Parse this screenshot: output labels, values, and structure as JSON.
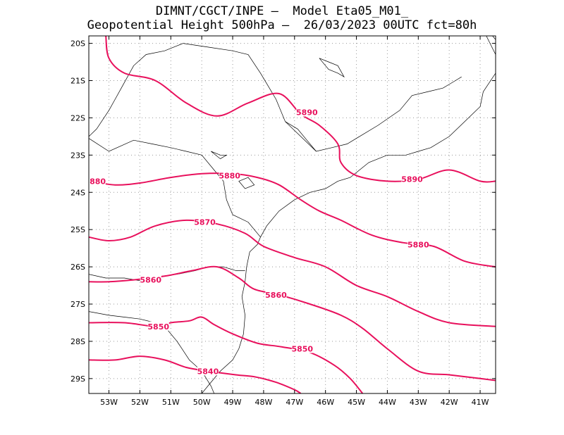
{
  "header": {
    "line1": "DIMNT/CGCT/INPE –  Model Eta05_M01_",
    "line2": "Geopotential Height 500hPa –  26/03/2023 00UTC fct=80h"
  },
  "map": {
    "lon_range": [
      -53.65,
      -40.5
    ],
    "lat_range": [
      -29.4,
      -19.8
    ],
    "gridlines": true,
    "colors": {
      "contour": "#e8105c",
      "coast": "#000000",
      "grid": "#999999"
    },
    "lon_ticks": [
      {
        "value": -53,
        "label": "53W"
      },
      {
        "value": -52,
        "label": "52W"
      },
      {
        "value": -51,
        "label": "51W"
      },
      {
        "value": -50,
        "label": "50W"
      },
      {
        "value": -49,
        "label": "49W"
      },
      {
        "value": -48,
        "label": "48W"
      },
      {
        "value": -47,
        "label": "47W"
      },
      {
        "value": -46,
        "label": "46W"
      },
      {
        "value": -45,
        "label": "45W"
      },
      {
        "value": -44,
        "label": "44W"
      },
      {
        "value": -43,
        "label": "43W"
      },
      {
        "value": -42,
        "label": "42W"
      },
      {
        "value": -41,
        "label": "41W"
      }
    ],
    "lat_ticks": [
      {
        "value": -20,
        "label": "20S"
      },
      {
        "value": -21,
        "label": "21S"
      },
      {
        "value": -22,
        "label": "22S"
      },
      {
        "value": -23,
        "label": "23S"
      },
      {
        "value": -24,
        "label": "24S"
      },
      {
        "value": -25,
        "label": "25S"
      },
      {
        "value": -26,
        "label": "26S"
      },
      {
        "value": -27,
        "label": "27S"
      },
      {
        "value": -28,
        "label": "28S"
      },
      {
        "value": -29,
        "label": "29S"
      }
    ],
    "contours": [
      {
        "level": "5890",
        "points": [
          [
            -53.1,
            -19.8
          ],
          [
            -53.0,
            -20.4
          ],
          [
            -52.5,
            -20.8
          ],
          [
            -51.5,
            -21.0
          ],
          [
            -50.5,
            -21.6
          ],
          [
            -49.5,
            -21.95
          ],
          [
            -48.5,
            -21.6
          ],
          [
            -47.5,
            -21.35
          ],
          [
            -46.8,
            -21.9
          ],
          [
            -46.2,
            -22.2
          ],
          [
            -45.6,
            -22.7
          ],
          [
            -45.5,
            -23.2
          ],
          [
            -45.0,
            -23.55
          ],
          [
            -44.0,
            -23.7
          ],
          [
            -43.0,
            -23.65
          ],
          [
            -42.0,
            -23.4
          ],
          [
            -41.0,
            -23.7
          ],
          [
            -40.5,
            -23.7
          ]
        ],
        "labels": [
          [
            -46.6,
            -21.85
          ],
          [
            -43.2,
            -23.65
          ]
        ]
      },
      {
        "level": "5880",
        "points": [
          [
            -53.65,
            -23.7
          ],
          [
            -52.8,
            -23.8
          ],
          [
            -52.0,
            -23.75
          ],
          [
            -51.0,
            -23.6
          ],
          [
            -50.0,
            -23.5
          ],
          [
            -49.0,
            -23.5
          ],
          [
            -48.2,
            -23.6
          ],
          [
            -47.5,
            -23.8
          ],
          [
            -46.8,
            -24.2
          ],
          [
            -46.2,
            -24.5
          ],
          [
            -45.5,
            -24.75
          ],
          [
            -44.5,
            -25.15
          ],
          [
            -43.5,
            -25.35
          ],
          [
            -42.5,
            -25.45
          ],
          [
            -41.5,
            -25.85
          ],
          [
            -40.5,
            -26.0
          ]
        ],
        "labels": [
          [
            -53.45,
            -23.7
          ],
          [
            -49.1,
            -23.55
          ],
          [
            -43.0,
            -25.4
          ]
        ]
      },
      {
        "level": "5870",
        "points": [
          [
            -53.65,
            -25.2
          ],
          [
            -53.0,
            -25.3
          ],
          [
            -52.3,
            -25.2
          ],
          [
            -51.5,
            -24.9
          ],
          [
            -50.5,
            -24.75
          ],
          [
            -49.5,
            -24.85
          ],
          [
            -48.6,
            -25.1
          ],
          [
            -48.0,
            -25.45
          ],
          [
            -47.0,
            -25.75
          ],
          [
            -46.0,
            -26.0
          ],
          [
            -45.0,
            -26.5
          ],
          [
            -44.0,
            -26.8
          ],
          [
            -43.0,
            -27.2
          ],
          [
            -42.0,
            -27.5
          ],
          [
            -40.5,
            -27.6
          ]
        ],
        "labels": [
          [
            -49.9,
            -24.8
          ]
        ]
      },
      {
        "level": "5860",
        "points": [
          [
            -53.65,
            -26.4
          ],
          [
            -53.0,
            -26.4
          ],
          [
            -52.2,
            -26.35
          ],
          [
            -51.2,
            -26.25
          ],
          [
            -50.3,
            -26.1
          ],
          [
            -49.5,
            -26.0
          ],
          [
            -48.8,
            -26.3
          ],
          [
            -48.3,
            -26.6
          ],
          [
            -47.5,
            -26.75
          ],
          [
            -46.5,
            -27.0
          ],
          [
            -45.5,
            -27.3
          ],
          [
            -44.8,
            -27.65
          ],
          [
            -44.0,
            -28.2
          ],
          [
            -43.0,
            -28.8
          ],
          [
            -42.0,
            -28.9
          ],
          [
            -41.0,
            -29.0
          ],
          [
            -40.5,
            -29.05
          ]
        ],
        "labels": [
          [
            -51.65,
            -26.35
          ],
          [
            -47.6,
            -26.75
          ]
        ]
      },
      {
        "level": "5850",
        "points": [
          [
            -53.65,
            -27.5
          ],
          [
            -52.5,
            -27.5
          ],
          [
            -51.5,
            -27.6
          ],
          [
            -51.0,
            -27.5
          ],
          [
            -50.4,
            -27.45
          ],
          [
            -50.0,
            -27.35
          ],
          [
            -49.6,
            -27.55
          ],
          [
            -49.0,
            -27.8
          ],
          [
            -48.2,
            -28.05
          ],
          [
            -47.4,
            -28.15
          ],
          [
            -46.5,
            -28.3
          ],
          [
            -45.7,
            -28.65
          ],
          [
            -45.2,
            -29.0
          ],
          [
            -44.8,
            -29.4
          ]
        ],
        "labels": [
          [
            -51.4,
            -27.6
          ],
          [
            -46.75,
            -28.2
          ]
        ]
      },
      {
        "level": "5840",
        "points": [
          [
            -53.65,
            -28.5
          ],
          [
            -52.8,
            -28.5
          ],
          [
            -52.0,
            -28.4
          ],
          [
            -51.2,
            -28.5
          ],
          [
            -50.5,
            -28.7
          ],
          [
            -49.8,
            -28.8
          ],
          [
            -48.9,
            -28.9
          ],
          [
            -48.3,
            -28.95
          ],
          [
            -47.6,
            -29.1
          ],
          [
            -47.0,
            -29.3
          ],
          [
            -46.8,
            -29.4
          ]
        ],
        "labels": [
          [
            -49.8,
            -28.8
          ]
        ]
      }
    ],
    "boundaries": [
      {
        "name": "rj-es-coast",
        "points": [
          [
            -40.5,
            -20.8
          ],
          [
            -40.9,
            -21.3
          ],
          [
            -41.0,
            -21.7
          ],
          [
            -41.5,
            -22.1
          ],
          [
            -42.0,
            -22.5
          ],
          [
            -42.6,
            -22.8
          ],
          [
            -43.0,
            -22.9
          ],
          [
            -43.4,
            -23.0
          ],
          [
            -44.0,
            -23.0
          ],
          [
            -44.6,
            -23.2
          ],
          [
            -45.2,
            -23.6
          ],
          [
            -45.6,
            -23.7
          ],
          [
            -46.0,
            -23.9
          ],
          [
            -46.5,
            -24.0
          ],
          [
            -47.0,
            -24.2
          ],
          [
            -47.5,
            -24.5
          ],
          [
            -47.9,
            -24.9
          ],
          [
            -48.1,
            -25.2
          ],
          [
            -48.2,
            -25.4
          ],
          [
            -48.45,
            -25.6
          ],
          [
            -48.55,
            -26.0
          ],
          [
            -48.6,
            -26.4
          ],
          [
            -48.7,
            -26.8
          ],
          [
            -48.6,
            -27.3
          ],
          [
            -48.65,
            -27.8
          ],
          [
            -48.8,
            -28.2
          ],
          [
            -49.0,
            -28.5
          ],
          [
            -49.4,
            -28.8
          ],
          [
            -49.8,
            -29.2
          ],
          [
            -50.0,
            -29.4
          ]
        ]
      },
      {
        "name": "es-mg-border",
        "points": [
          [
            -41.6,
            -20.9
          ],
          [
            -41.8,
            -21.0
          ],
          [
            -42.2,
            -21.2
          ],
          [
            -42.7,
            -21.3
          ],
          [
            -43.2,
            -21.4
          ],
          [
            -43.6,
            -21.8
          ],
          [
            -44.3,
            -22.2
          ],
          [
            -44.9,
            -22.5
          ],
          [
            -45.3,
            -22.7
          ],
          [
            -45.8,
            -22.8
          ],
          [
            -46.3,
            -22.9
          ],
          [
            -46.8,
            -22.5
          ],
          [
            -47.3,
            -22.1
          ],
          [
            -47.6,
            -21.5
          ],
          [
            -48.1,
            -20.8
          ],
          [
            -48.5,
            -20.3
          ],
          [
            -49.0,
            -20.2
          ],
          [
            -49.8,
            -20.1
          ],
          [
            -50.6,
            -20.0
          ],
          [
            -51.2,
            -20.2
          ],
          [
            -51.8,
            -20.3
          ],
          [
            -52.2,
            -20.6
          ],
          [
            -52.6,
            -21.2
          ],
          [
            -52.8,
            -21.5
          ],
          [
            -53.0,
            -21.8
          ],
          [
            -53.4,
            -22.3
          ],
          [
            -53.65,
            -22.5
          ]
        ]
      },
      {
        "name": "es-ba-border",
        "points": [
          [
            -40.5,
            -20.3
          ],
          [
            -40.8,
            -19.8
          ]
        ]
      },
      {
        "name": "pr-sp-border",
        "points": [
          [
            -53.65,
            -22.55
          ],
          [
            -53.0,
            -22.9
          ],
          [
            -52.2,
            -22.6
          ],
          [
            -51.6,
            -22.7
          ],
          [
            -51.0,
            -22.8
          ],
          [
            -50.5,
            -22.9
          ],
          [
            -50.0,
            -23.0
          ],
          [
            -49.6,
            -23.4
          ],
          [
            -49.3,
            -23.7
          ],
          [
            -49.2,
            -24.2
          ],
          [
            -49.0,
            -24.6
          ],
          [
            -48.5,
            -24.8
          ],
          [
            -48.1,
            -25.2
          ]
        ]
      },
      {
        "name": "ms-pr-border",
        "points": [
          [
            -53.65,
            -23.6
          ],
          [
            -53.2,
            -23.8
          ]
        ]
      },
      {
        "name": "pr-sc-border",
        "points": [
          [
            -53.65,
            -26.2
          ],
          [
            -53.1,
            -26.3
          ],
          [
            -52.5,
            -26.3
          ],
          [
            -51.8,
            -26.4
          ],
          [
            -51.3,
            -26.25
          ],
          [
            -50.8,
            -26.2
          ],
          [
            -50.2,
            -26.1
          ],
          [
            -49.8,
            -26.0
          ],
          [
            -49.3,
            -26.0
          ],
          [
            -48.9,
            -26.1
          ],
          [
            -48.6,
            -26.1
          ]
        ]
      },
      {
        "name": "sc-rs-border",
        "points": [
          [
            -53.65,
            -27.2
          ],
          [
            -53.0,
            -27.3
          ],
          [
            -52.5,
            -27.35
          ],
          [
            -52.0,
            -27.4
          ],
          [
            -51.5,
            -27.5
          ],
          [
            -51.1,
            -27.7
          ],
          [
            -50.8,
            -28.0
          ],
          [
            -50.4,
            -28.5
          ],
          [
            -50.0,
            -28.8
          ],
          [
            -49.7,
            -29.2
          ],
          [
            -49.6,
            -29.4
          ]
        ]
      },
      {
        "name": "mg-sp-south",
        "points": [
          [
            -47.3,
            -22.1
          ],
          [
            -46.9,
            -22.3
          ],
          [
            -46.6,
            -22.6
          ],
          [
            -46.3,
            -22.9
          ]
        ]
      },
      {
        "name": "bahia-edge",
        "points": [
          [
            -40.5,
            -19.9
          ],
          [
            -40.6,
            -19.8
          ]
        ]
      }
    ],
    "lakes": [
      {
        "name": "furnas",
        "points": [
          [
            -46.2,
            -20.4
          ],
          [
            -45.9,
            -20.5
          ],
          [
            -45.6,
            -20.6
          ],
          [
            -45.4,
            -20.9
          ],
          [
            -45.6,
            -20.8
          ],
          [
            -45.9,
            -20.7
          ],
          [
            -46.2,
            -20.4
          ]
        ]
      },
      {
        "name": "itaipu",
        "points": [
          [
            -49.7,
            -22.9
          ],
          [
            -49.4,
            -23.0
          ],
          [
            -49.2,
            -23.0
          ],
          [
            -49.4,
            -23.1
          ],
          [
            -49.7,
            -22.9
          ]
        ]
      },
      {
        "name": "guarapiranga",
        "points": [
          [
            -48.8,
            -23.7
          ],
          [
            -48.5,
            -23.6
          ],
          [
            -48.3,
            -23.8
          ],
          [
            -48.6,
            -23.9
          ],
          [
            -48.8,
            -23.7
          ]
        ]
      }
    ]
  }
}
